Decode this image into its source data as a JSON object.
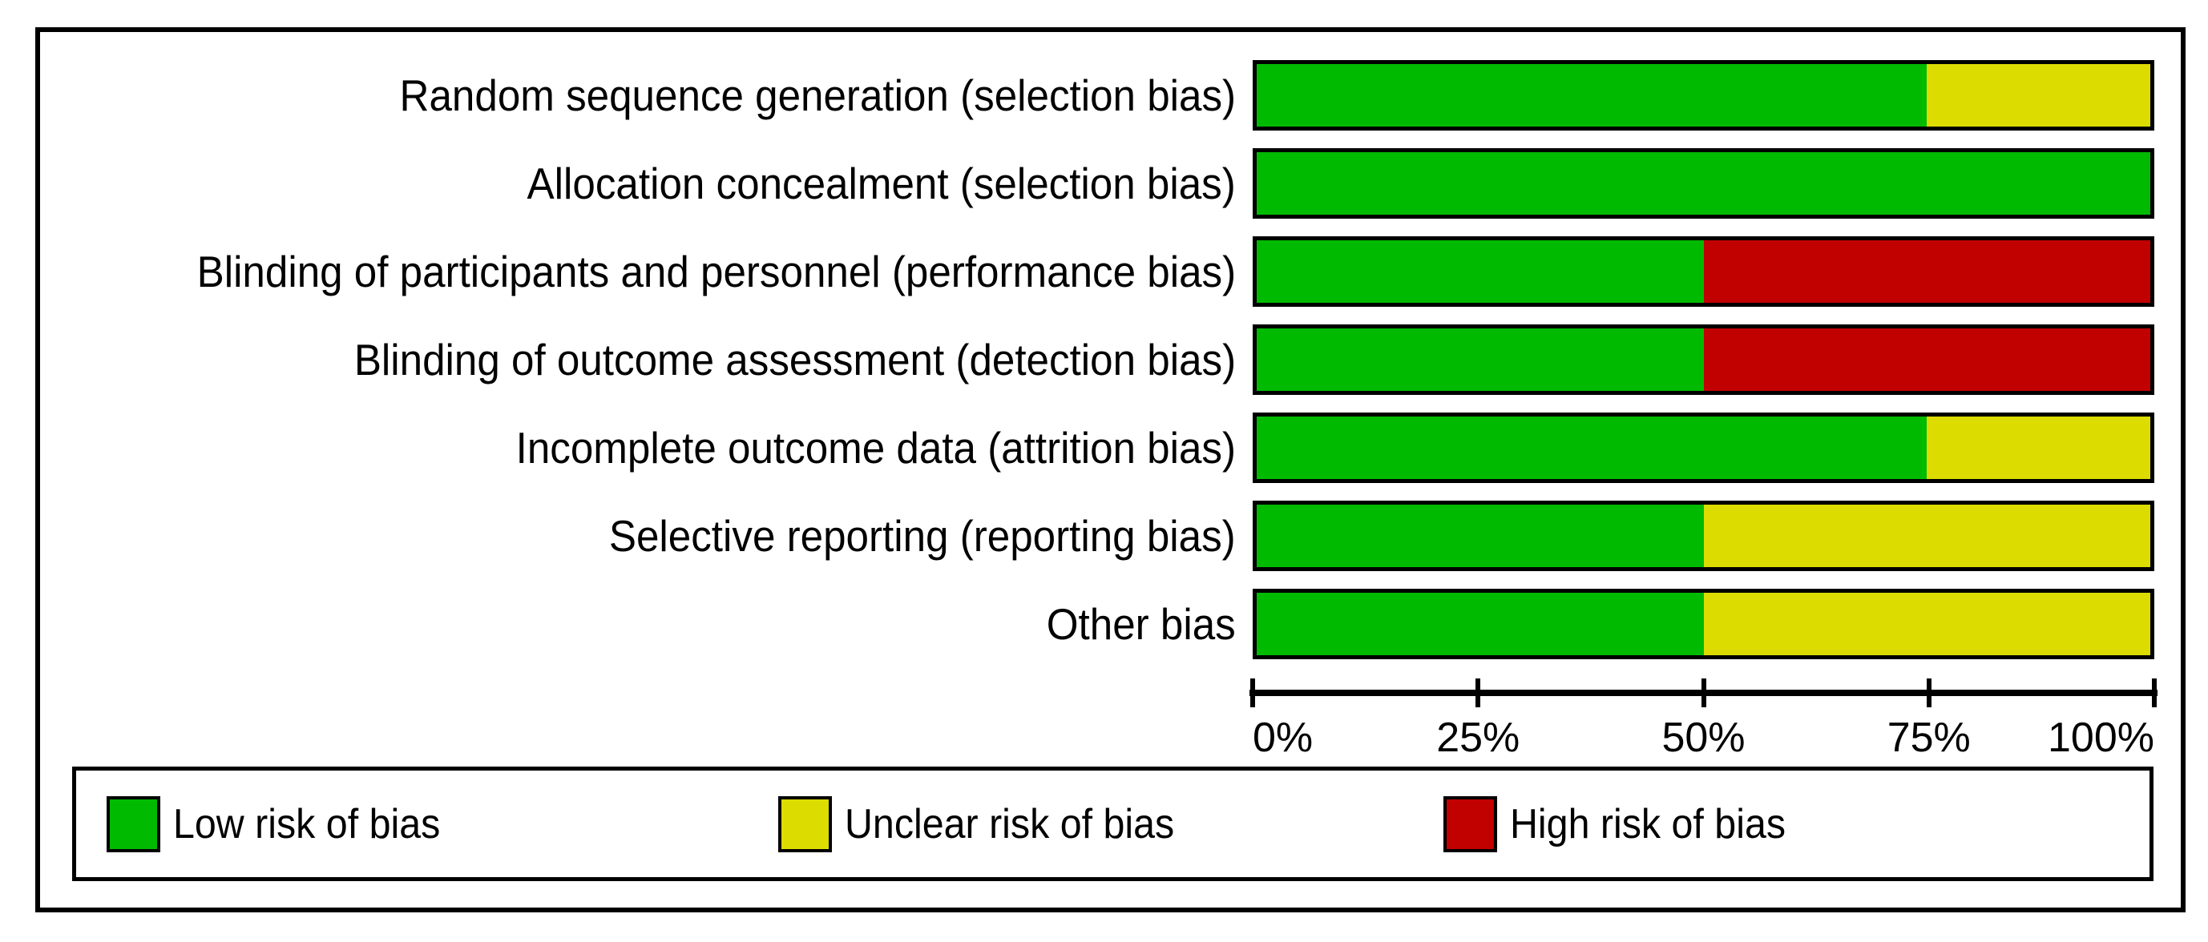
{
  "chart_data": {
    "type": "bar",
    "subtype": "horizontal_stacked_percent",
    "categories": [
      "Random sequence generation (selection bias)",
      "Allocation concealment (selection bias)",
      "Blinding of participants and personnel (performance bias)",
      "Blinding of outcome assessment (detection bias)",
      "Incomplete outcome data (attrition bias)",
      "Selective reporting (reporting bias)",
      "Other bias"
    ],
    "series": [
      {
        "name": "Low risk of bias",
        "color": "#00BA00",
        "values": [
          75,
          100,
          50,
          50,
          75,
          50,
          50
        ]
      },
      {
        "name": "Unclear risk of bias",
        "color": "#DCDC00",
        "values": [
          25,
          0,
          0,
          0,
          25,
          50,
          50
        ]
      },
      {
        "name": "High risk of bias",
        "color": "#C10000",
        "values": [
          0,
          0,
          50,
          50,
          0,
          0,
          0
        ]
      }
    ],
    "x_ticks": [
      "0%",
      "25%",
      "50%",
      "75%",
      "100%"
    ],
    "xlim": [
      0,
      100
    ],
    "grid": false,
    "legend_position": "bottom",
    "colors": {
      "border": "#000000",
      "background": "#ffffff"
    }
  }
}
